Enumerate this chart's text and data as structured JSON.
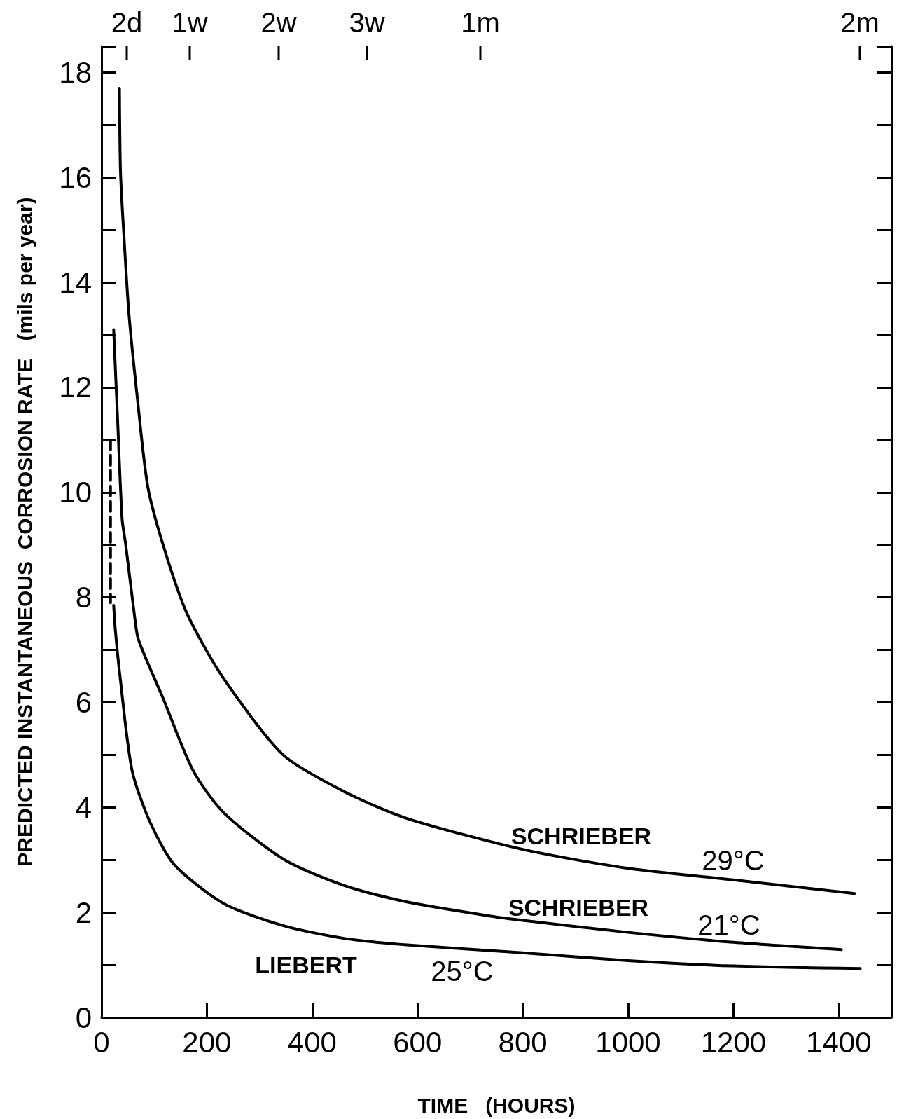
{
  "chart_data": {
    "type": "line",
    "xlabel": "TIME   (HOURS)",
    "ylabel": "PREDICTED INSTANTANEOUS  CORROSION RATE   (mils per year)",
    "xlim": [
      0,
      1500
    ],
    "xticks": [
      0,
      200,
      400,
      600,
      800,
      1000,
      1200,
      1400
    ],
    "ylim": [
      0,
      18.5
    ],
    "yticks": [
      0,
      2,
      4,
      6,
      8,
      10,
      12,
      14,
      16,
      18
    ],
    "grid": false,
    "marker": "none",
    "series": [
      {
        "color": "#000000",
        "x": [
          34,
          36,
          43,
          52,
          68,
          88,
          120,
          162,
          229,
          345,
          461,
          577,
          800,
          1000,
          1200,
          1430
        ],
        "values": [
          17.7,
          16.1,
          14.8,
          13.4,
          11.8,
          10.1,
          8.9,
          7.7,
          6.5,
          5.0,
          4.3,
          3.8,
          3.2,
          2.84,
          2.62,
          2.36
        ]
      },
      {
        "color": "#000000",
        "x": [
          23,
          30,
          39,
          46,
          62,
          70,
          116,
          174,
          232,
          348,
          464,
          580,
          739,
          800,
          1000,
          1200,
          1405
        ],
        "values": [
          13.1,
          11.5,
          9.5,
          9.0,
          7.7,
          7.2,
          6.1,
          4.7,
          3.9,
          3.0,
          2.5,
          2.2,
          1.93,
          1.85,
          1.62,
          1.43,
          1.29
        ]
      },
      {
        "color": "#000000",
        "x": [
          23,
          26,
          35,
          58,
          93,
          139,
          232,
          348,
          464,
          580,
          800,
          1000,
          1200,
          1441
        ],
        "values": [
          7.85,
          7.4,
          6.5,
          4.7,
          3.7,
          2.9,
          2.17,
          1.74,
          1.5,
          1.38,
          1.23,
          1.08,
          0.98,
          0.93
        ]
      },
      {
        "color": "#000000",
        "line_style": "dashed",
        "x": [
          17,
          17
        ],
        "values": [
          11,
          7.9
        ]
      }
    ],
    "annotations": [
      "2d",
      "1w",
      "2w",
      "3w",
      "1m",
      "2m",
      "SCHRIEBER",
      "29°C",
      "SCHRIEBER",
      "21°C",
      "LIEBERT",
      "25°C"
    ]
  }
}
